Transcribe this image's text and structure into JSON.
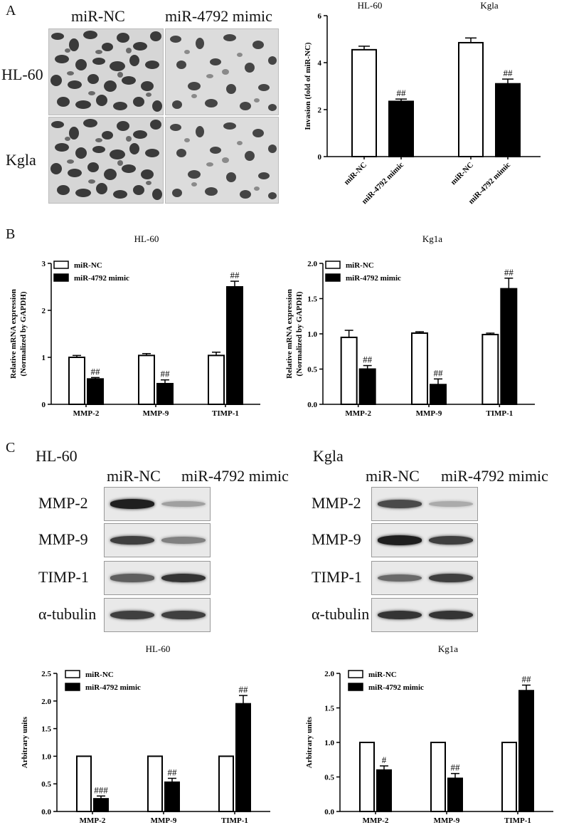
{
  "panel_letters": [
    "A",
    "B",
    "C"
  ],
  "panel_a": {
    "columns": [
      "miR-NC",
      "miR-4792 mimic"
    ],
    "rows": [
      "HL-60",
      "Kgla"
    ]
  },
  "panel_c_blots": [
    {
      "cell_line": "HL-60",
      "lanes": [
        "miR-NC",
        "miR-4792 mimic"
      ],
      "proteins": [
        "MMP-2",
        "MMP-9",
        "TIMP-1",
        "α-tubulin"
      ],
      "band_intensity": [
        [
          0.95,
          0.35
        ],
        [
          0.8,
          0.5
        ],
        [
          0.65,
          0.85
        ],
        [
          0.8,
          0.8
        ]
      ]
    },
    {
      "cell_line": "Kgla",
      "lanes": [
        "miR-NC",
        "miR-4792 mimic"
      ],
      "proteins": [
        "MMP-2",
        "MMP-9",
        "TIMP-1",
        "α-tubulin"
      ],
      "band_intensity": [
        [
          0.75,
          0.3
        ],
        [
          0.95,
          0.8
        ],
        [
          0.6,
          0.8
        ],
        [
          0.85,
          0.85
        ]
      ]
    }
  ],
  "chart_data": [
    {
      "id": "invasion",
      "type": "bar",
      "titles": [
        "HL-60",
        "Kgla"
      ],
      "ylabel": "Invasion (fold of miR-NC)",
      "ylim": [
        0,
        6
      ],
      "yticks": [
        "0",
        "2",
        "4",
        "6"
      ],
      "categories": [
        "miR-NC",
        "miR-4792 mimic",
        "miR-NC",
        "miR-4792 mimic"
      ],
      "values": [
        4.55,
        2.35,
        4.85,
        3.1
      ],
      "errors": [
        0.15,
        0.1,
        0.2,
        0.2
      ],
      "fills": [
        "white",
        "black",
        "white",
        "black"
      ],
      "annotations": [
        "",
        "##",
        "",
        "##"
      ]
    },
    {
      "id": "mrna-hl60",
      "type": "bar",
      "title": "HL-60",
      "ylabel": "Relative mRNA expression",
      "ylabel2": "(Normalized by GAPDH)",
      "ylim": [
        0,
        3
      ],
      "yticks": [
        "0",
        "1",
        "2",
        "3"
      ],
      "categories": [
        "MMP-2",
        "MMP-9",
        "TIMP-1"
      ],
      "series": [
        {
          "name": "miR-NC",
          "values": [
            1.0,
            1.04,
            1.04
          ],
          "errors": [
            0.04,
            0.04,
            0.07
          ]
        },
        {
          "name": "miR-4792 mimic",
          "values": [
            0.54,
            0.44,
            2.5
          ],
          "errors": [
            0.03,
            0.08,
            0.12
          ]
        }
      ],
      "annotations": [
        "##",
        "##",
        "##"
      ],
      "legend": "top-left"
    },
    {
      "id": "mrna-kg1a",
      "type": "bar",
      "title": "Kg1a",
      "ylabel": "Relative mRNA expression",
      "ylabel2": "(Normalized by GAPDH)",
      "ylim": [
        0,
        2
      ],
      "yticks": [
        "0.0",
        "0.5",
        "1.0",
        "1.5",
        "2.0"
      ],
      "categories": [
        "MMP-2",
        "MMP-9",
        "TIMP-1"
      ],
      "series": [
        {
          "name": "miR-NC",
          "values": [
            0.95,
            1.01,
            0.99
          ],
          "errors": [
            0.1,
            0.02,
            0.02
          ]
        },
        {
          "name": "miR-4792 mimic",
          "values": [
            0.5,
            0.28,
            1.64
          ],
          "errors": [
            0.05,
            0.08,
            0.15
          ]
        }
      ],
      "annotations": [
        "##",
        "##",
        "##"
      ],
      "legend": "top-left"
    },
    {
      "id": "wb-hl60",
      "type": "bar",
      "title": "HL-60",
      "ylabel": "Arbitrary units",
      "ylim": [
        0,
        2.5
      ],
      "yticks": [
        "0.0",
        "0.5",
        "1.0",
        "1.5",
        "2.0",
        "2.5"
      ],
      "categories": [
        "MMP-2",
        "MMP-9",
        "TIMP-1"
      ],
      "series": [
        {
          "name": "miR-NC",
          "values": [
            1.0,
            1.0,
            1.0
          ],
          "errors": [
            0,
            0,
            0
          ]
        },
        {
          "name": "miR-4792 mimic",
          "values": [
            0.23,
            0.53,
            1.95
          ],
          "errors": [
            0.05,
            0.07,
            0.15
          ]
        }
      ],
      "annotations": [
        "###",
        "##",
        "##"
      ],
      "legend": "top-left"
    },
    {
      "id": "wb-kg1a",
      "type": "bar",
      "title": "Kg1a",
      "ylabel": "Arbitrary units",
      "ylim": [
        0,
        2
      ],
      "yticks": [
        "0.0",
        "0.5",
        "1.0",
        "1.5",
        "2.0"
      ],
      "categories": [
        "MMP-2",
        "MMP-9",
        "TIMP-1"
      ],
      "series": [
        {
          "name": "miR-NC",
          "values": [
            1.0,
            1.0,
            1.0
          ],
          "errors": [
            0,
            0,
            0
          ]
        },
        {
          "name": "miR-4792 mimic",
          "values": [
            0.6,
            0.48,
            1.75
          ],
          "errors": [
            0.06,
            0.07,
            0.08
          ]
        }
      ],
      "annotations": [
        "#",
        "##",
        "##"
      ],
      "legend": "top-left"
    }
  ]
}
